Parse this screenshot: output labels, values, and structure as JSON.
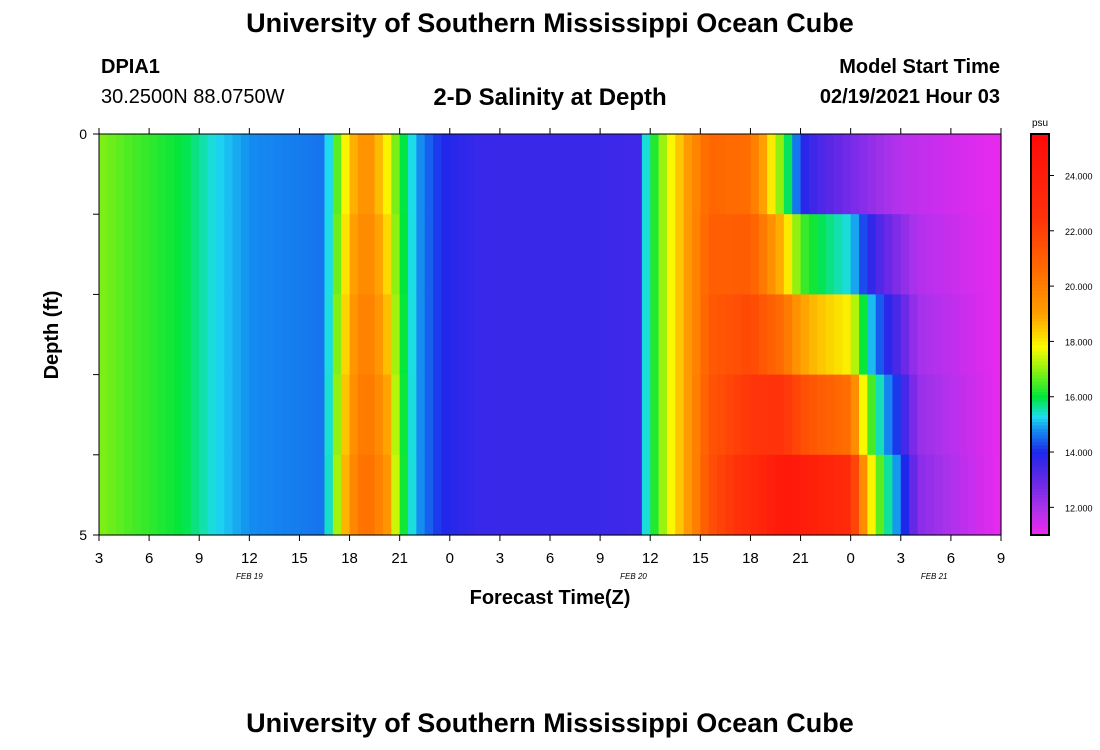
{
  "header": {
    "title": "University of Southern Mississippi Ocean Cube",
    "footer_title": "University of Southern Mississippi Ocean Cube",
    "station_id": "DPIA1",
    "station_coords": "30.2500N 88.0750W",
    "chart_title": "2-D Salinity at Depth",
    "model_start_label": "Model Start Time",
    "model_start_value": "02/19/2021 Hour 03"
  },
  "chart_data": {
    "type": "heatmap",
    "title": "2-D Salinity at Depth",
    "xlabel": "Forecast Time(Z)",
    "ylabel": "Depth (ft)",
    "x_start_hour": 3,
    "x_end_hour": 57,
    "x_tick_hours": [
      3,
      6,
      9,
      12,
      15,
      18,
      21,
      24,
      27,
      30,
      33,
      36,
      39,
      42,
      45,
      48,
      51,
      54,
      57
    ],
    "x_tick_labels": [
      "3",
      "6",
      "9",
      "12",
      "15",
      "18",
      "21",
      "0",
      "3",
      "6",
      "9",
      "12",
      "15",
      "18",
      "21",
      "0",
      "3",
      "6",
      "9"
    ],
    "date_labels": [
      {
        "hour": 12,
        "label": "FEB 19"
      },
      {
        "hour": 35,
        "label": "FEB 20"
      },
      {
        "hour": 53,
        "label": "FEB 21"
      }
    ],
    "ylim": [
      0,
      5
    ],
    "y_tick_labels": [
      {
        "depth": 0,
        "label": "0"
      },
      {
        "depth": 5,
        "label": "5"
      }
    ],
    "depth_layers": 5,
    "colorbar": {
      "unit": "psu",
      "vmin": 11.0,
      "vmax": 25.5,
      "tick_values": [
        12,
        14,
        16,
        18,
        20,
        22,
        24
      ],
      "tick_labels": [
        "12.000",
        "14.000",
        "16.000",
        "18.000",
        "20.000",
        "22.000",
        "24.000"
      ]
    },
    "salinity_profile": {
      "upper_hours": [
        3,
        5,
        8,
        10,
        12,
        16.5,
        17.2,
        18,
        19,
        20.2,
        21,
        22,
        22.5,
        23.5,
        24.5,
        26,
        33,
        35.5,
        35.7,
        37,
        38.5,
        39.5,
        42,
        44,
        45,
        46,
        49,
        51,
        57
      ],
      "upper_psu": [
        16.9,
        16.5,
        16.0,
        15.3,
        14.8,
        14.6,
        16.5,
        18.5,
        19.7,
        18.0,
        16.3,
        15.0,
        14.6,
        14.0,
        13.8,
        13.6,
        13.6,
        13.5,
        15.3,
        17.5,
        19.5,
        20.8,
        20.5,
        16.5,
        14.0,
        13.4,
        12.4,
        11.8,
        11.1
      ],
      "lower_hours": [
        3,
        5,
        8,
        10,
        12,
        16.5,
        17.2,
        18,
        19,
        20.2,
        21,
        22,
        22.5,
        23.5,
        24.5,
        26,
        33,
        35.5,
        35.7,
        37,
        38.5,
        39.5,
        42,
        44,
        48,
        49,
        50,
        51,
        52,
        57
      ],
      "lower_psu": [
        16.9,
        16.5,
        16.0,
        15.3,
        14.8,
        14.6,
        17.0,
        19.5,
        20.6,
        19.5,
        16.5,
        15.0,
        14.6,
        14.0,
        13.8,
        13.6,
        13.6,
        13.5,
        15.3,
        17.5,
        19.5,
        21.5,
        23.0,
        24.5,
        23.0,
        18.5,
        16.0,
        14.5,
        12.5,
        11.1
      ]
    }
  }
}
